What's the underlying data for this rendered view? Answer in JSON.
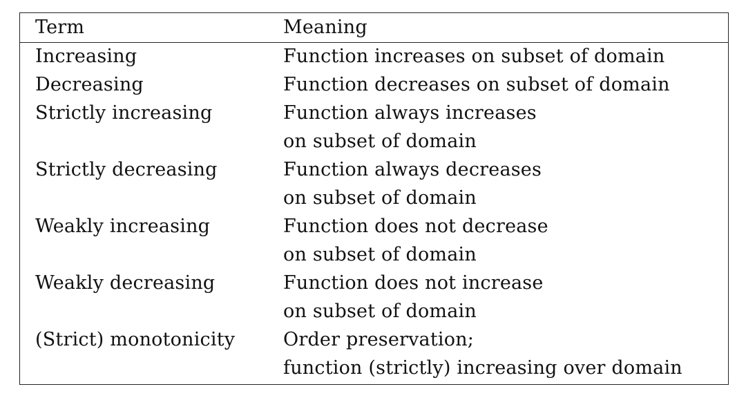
{
  "table": {
    "header": {
      "term": "Term",
      "meaning": "Meaning"
    },
    "rows": [
      {
        "term": "Increasing",
        "meaning": [
          "Function increases on subset of domain"
        ]
      },
      {
        "term": "Decreasing",
        "meaning": [
          "Function decreases on subset of domain"
        ]
      },
      {
        "term": "Strictly increasing",
        "meaning": [
          "Function always increases",
          "on subset of domain"
        ]
      },
      {
        "term": "Strictly decreasing",
        "meaning": [
          "Function always decreases",
          "on subset of domain"
        ]
      },
      {
        "term": "Weakly increasing",
        "meaning": [
          "Function does not decrease",
          "on subset of domain"
        ]
      },
      {
        "term": "Weakly decreasing",
        "meaning": [
          "Function does not increase",
          "on subset of domain"
        ]
      },
      {
        "term": "(Strict) monotonicity",
        "meaning": [
          "Order preservation;",
          "function (strictly) increasing over domain"
        ]
      }
    ]
  }
}
